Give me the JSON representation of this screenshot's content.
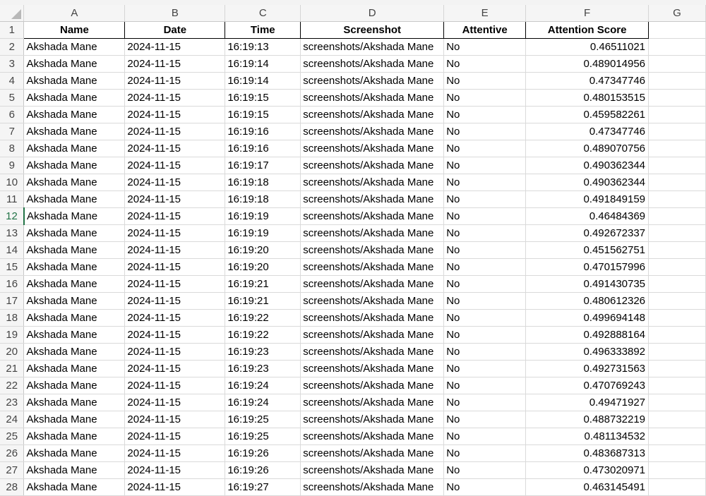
{
  "columns": [
    "A",
    "B",
    "C",
    "D",
    "E",
    "F",
    "G"
  ],
  "header_row_number": "1",
  "header": {
    "name": "Name",
    "date": "Date",
    "time": "Time",
    "screenshot": "Screenshot",
    "attentive": "Attentive",
    "score": "Attention Score"
  },
  "rows": [
    {
      "n": "2",
      "name": "Akshada Mane",
      "date": "2024-11-15",
      "time": "16:19:13",
      "screenshot": "screenshots/Akshada Mane",
      "attentive": "No",
      "score": "0.46511021"
    },
    {
      "n": "3",
      "name": "Akshada Mane",
      "date": "2024-11-15",
      "time": "16:19:14",
      "screenshot": "screenshots/Akshada Mane",
      "attentive": "No",
      "score": "0.489014956"
    },
    {
      "n": "4",
      "name": "Akshada Mane",
      "date": "2024-11-15",
      "time": "16:19:14",
      "screenshot": "screenshots/Akshada Mane",
      "attentive": "No",
      "score": "0.47347746"
    },
    {
      "n": "5",
      "name": "Akshada Mane",
      "date": "2024-11-15",
      "time": "16:19:15",
      "screenshot": "screenshots/Akshada Mane",
      "attentive": "No",
      "score": "0.480153515"
    },
    {
      "n": "6",
      "name": "Akshada Mane",
      "date": "2024-11-15",
      "time": "16:19:15",
      "screenshot": "screenshots/Akshada Mane",
      "attentive": "No",
      "score": "0.459582261"
    },
    {
      "n": "7",
      "name": "Akshada Mane",
      "date": "2024-11-15",
      "time": "16:19:16",
      "screenshot": "screenshots/Akshada Mane",
      "attentive": "No",
      "score": "0.47347746"
    },
    {
      "n": "8",
      "name": "Akshada Mane",
      "date": "2024-11-15",
      "time": "16:19:16",
      "screenshot": "screenshots/Akshada Mane",
      "attentive": "No",
      "score": "0.489070756"
    },
    {
      "n": "9",
      "name": "Akshada Mane",
      "date": "2024-11-15",
      "time": "16:19:17",
      "screenshot": "screenshots/Akshada Mane",
      "attentive": "No",
      "score": "0.490362344"
    },
    {
      "n": "10",
      "name": "Akshada Mane",
      "date": "2024-11-15",
      "time": "16:19:18",
      "screenshot": "screenshots/Akshada Mane",
      "attentive": "No",
      "score": "0.490362344"
    },
    {
      "n": "11",
      "name": "Akshada Mane",
      "date": "2024-11-15",
      "time": "16:19:18",
      "screenshot": "screenshots/Akshada Mane",
      "attentive": "No",
      "score": "0.491849159"
    },
    {
      "n": "12",
      "name": "Akshada Mane",
      "date": "2024-11-15",
      "time": "16:19:19",
      "screenshot": "screenshots/Akshada Mane",
      "attentive": "No",
      "score": "0.46484369"
    },
    {
      "n": "13",
      "name": "Akshada Mane",
      "date": "2024-11-15",
      "time": "16:19:19",
      "screenshot": "screenshots/Akshada Mane",
      "attentive": "No",
      "score": "0.492672337"
    },
    {
      "n": "14",
      "name": "Akshada Mane",
      "date": "2024-11-15",
      "time": "16:19:20",
      "screenshot": "screenshots/Akshada Mane",
      "attentive": "No",
      "score": "0.451562751"
    },
    {
      "n": "15",
      "name": "Akshada Mane",
      "date": "2024-11-15",
      "time": "16:19:20",
      "screenshot": "screenshots/Akshada Mane",
      "attentive": "No",
      "score": "0.470157996"
    },
    {
      "n": "16",
      "name": "Akshada Mane",
      "date": "2024-11-15",
      "time": "16:19:21",
      "screenshot": "screenshots/Akshada Mane",
      "attentive": "No",
      "score": "0.491430735"
    },
    {
      "n": "17",
      "name": "Akshada Mane",
      "date": "2024-11-15",
      "time": "16:19:21",
      "screenshot": "screenshots/Akshada Mane",
      "attentive": "No",
      "score": "0.480612326"
    },
    {
      "n": "18",
      "name": "Akshada Mane",
      "date": "2024-11-15",
      "time": "16:19:22",
      "screenshot": "screenshots/Akshada Mane",
      "attentive": "No",
      "score": "0.499694148"
    },
    {
      "n": "19",
      "name": "Akshada Mane",
      "date": "2024-11-15",
      "time": "16:19:22",
      "screenshot": "screenshots/Akshada Mane",
      "attentive": "No",
      "score": "0.492888164"
    },
    {
      "n": "20",
      "name": "Akshada Mane",
      "date": "2024-11-15",
      "time": "16:19:23",
      "screenshot": "screenshots/Akshada Mane",
      "attentive": "No",
      "score": "0.496333892"
    },
    {
      "n": "21",
      "name": "Akshada Mane",
      "date": "2024-11-15",
      "time": "16:19:23",
      "screenshot": "screenshots/Akshada Mane",
      "attentive": "No",
      "score": "0.492731563"
    },
    {
      "n": "22",
      "name": "Akshada Mane",
      "date": "2024-11-15",
      "time": "16:19:24",
      "screenshot": "screenshots/Akshada Mane",
      "attentive": "No",
      "score": "0.470769243"
    },
    {
      "n": "23",
      "name": "Akshada Mane",
      "date": "2024-11-15",
      "time": "16:19:24",
      "screenshot": "screenshots/Akshada Mane",
      "attentive": "No",
      "score": "0.49471927"
    },
    {
      "n": "24",
      "name": "Akshada Mane",
      "date": "2024-11-15",
      "time": "16:19:25",
      "screenshot": "screenshots/Akshada Mane",
      "attentive": "No",
      "score": "0.488732219"
    },
    {
      "n": "25",
      "name": "Akshada Mane",
      "date": "2024-11-15",
      "time": "16:19:25",
      "screenshot": "screenshots/Akshada Mane",
      "attentive": "No",
      "score": "0.481134532"
    },
    {
      "n": "26",
      "name": "Akshada Mane",
      "date": "2024-11-15",
      "time": "16:19:26",
      "screenshot": "screenshots/Akshada Mane",
      "attentive": "No",
      "score": "0.483687313"
    },
    {
      "n": "27",
      "name": "Akshada Mane",
      "date": "2024-11-15",
      "time": "16:19:26",
      "screenshot": "screenshots/Akshada Mane",
      "attentive": "No",
      "score": "0.473020971"
    },
    {
      "n": "28",
      "name": "Akshada Mane",
      "date": "2024-11-15",
      "time": "16:19:27",
      "screenshot": "screenshots/Akshada Mane",
      "attentive": "No",
      "score": "0.463145491"
    }
  ],
  "active_row": "12",
  "accent_color": "#217346"
}
